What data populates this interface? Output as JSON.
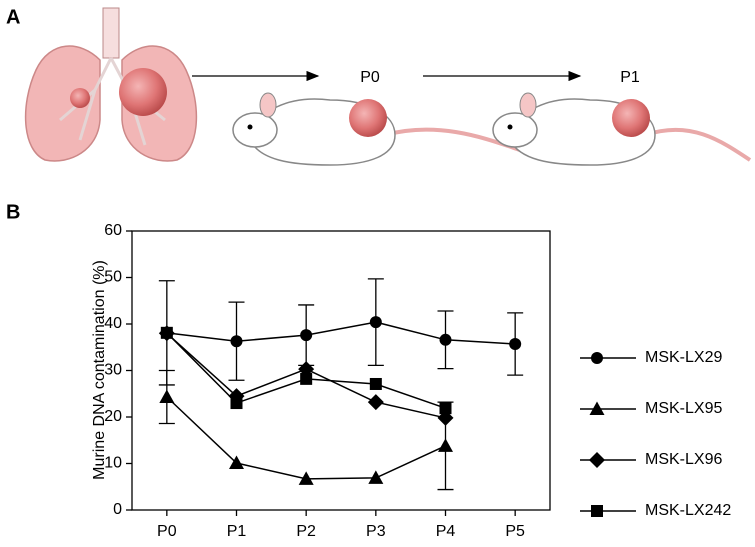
{
  "figure": {
    "panel_a": "A",
    "panel_b": "B",
    "stages": [
      "P0",
      "P1"
    ]
  },
  "chart_data": {
    "type": "line",
    "y_label": "Murine DNA contamination (%)",
    "categories": [
      "P0",
      "P1",
      "P2",
      "P3",
      "P4",
      "P5"
    ],
    "ylim": [
      0,
      60
    ],
    "yticks": [
      0,
      10,
      20,
      30,
      40,
      50,
      60
    ],
    "series": [
      {
        "name": "MSK-LX29",
        "color": "#000000",
        "marker": "circle",
        "values": [
          38.1,
          36.3,
          37.6,
          40.4,
          36.6,
          35.7
        ],
        "errors": [
          11.2,
          8.4,
          6.5,
          9.3,
          6.2,
          6.7
        ]
      },
      {
        "name": "MSK-LX95",
        "color": "#000000",
        "marker": "triangle",
        "values": [
          24.3,
          10.1,
          6.7,
          6.9,
          13.8,
          null
        ],
        "errors": [
          5.7,
          null,
          null,
          null,
          9.4,
          null
        ]
      },
      {
        "name": "MSK-LX96",
        "color": "#000000",
        "marker": "diamond",
        "values": [
          38.0,
          24.5,
          30.3,
          23.2,
          19.8,
          null
        ]
      },
      {
        "name": "MSK-LX242",
        "color": "#000000",
        "marker": "square",
        "values": [
          38.1,
          23.0,
          28.2,
          27.1,
          21.9,
          null
        ]
      }
    ]
  }
}
